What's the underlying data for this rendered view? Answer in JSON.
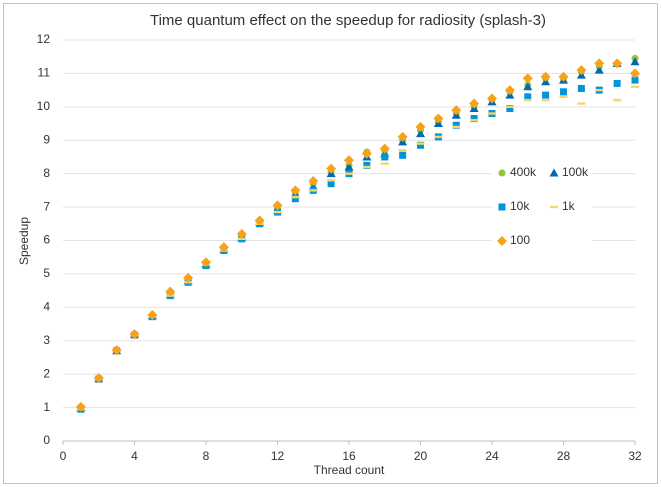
{
  "chart_data": {
    "type": "scatter",
    "title": "Time quantum effect on the speedup for radiosity (splash-3)",
    "x_label": "Thread count",
    "y_label": "Speedup",
    "x": [
      1,
      2,
      3,
      4,
      5,
      6,
      7,
      8,
      9,
      10,
      11,
      12,
      13,
      14,
      15,
      16,
      17,
      18,
      19,
      20,
      21,
      22,
      23,
      24,
      25,
      26,
      27,
      28,
      29,
      30,
      31,
      32
    ],
    "series": [
      {
        "name": "400k",
        "color": "#8dc63f",
        "marker": "circle",
        "values": [
          1,
          1.88,
          2.7,
          3.2,
          3.75,
          4.42,
          4.82,
          5.3,
          5.75,
          6.15,
          6.55,
          6.95,
          7.45,
          7.7,
          8.05,
          8.25,
          8.65,
          8.7,
          9.0,
          9.3,
          9.55,
          9.8,
          10.0,
          10.2,
          10.45,
          10.65,
          10.85,
          10.85,
          11.05,
          11.2,
          11.3,
          11.45
        ]
      },
      {
        "name": "100k",
        "color": "#0068b5",
        "marker": "triangle",
        "values": [
          1,
          1.88,
          2.7,
          3.2,
          3.75,
          4.4,
          4.8,
          5.3,
          5.75,
          6.1,
          6.55,
          6.9,
          7.4,
          7.6,
          8.0,
          8.2,
          8.5,
          8.6,
          8.95,
          9.2,
          9.5,
          9.75,
          9.95,
          10.15,
          10.35,
          10.6,
          10.75,
          10.8,
          10.95,
          11.1,
          11.3,
          11.35
        ]
      },
      {
        "name": "10k",
        "color": "#0095d9",
        "marker": "square",
        "values": [
          0.95,
          1.85,
          2.7,
          3.17,
          3.72,
          4.35,
          4.75,
          5.25,
          5.7,
          6.05,
          6.5,
          6.85,
          7.25,
          7.5,
          7.7,
          8.0,
          8.25,
          8.5,
          8.55,
          8.85,
          9.1,
          9.45,
          9.65,
          9.8,
          9.95,
          10.3,
          10.35,
          10.45,
          10.55,
          10.5,
          10.7,
          10.8
        ]
      },
      {
        "name": "1k",
        "color": "#f7d56b",
        "marker": "dash",
        "values": [
          0.95,
          1.85,
          2.7,
          3.17,
          3.72,
          4.35,
          4.75,
          5.28,
          5.7,
          6.05,
          6.5,
          6.85,
          7.3,
          7.5,
          7.8,
          8.0,
          8.2,
          8.3,
          8.7,
          8.9,
          9.1,
          9.4,
          9.6,
          9.8,
          10.0,
          10.2,
          10.2,
          10.3,
          10.1,
          10.5,
          10.2,
          10.6
        ]
      },
      {
        "name": "100",
        "color": "#f8a11b",
        "marker": "diamond",
        "values": [
          1.02,
          1.88,
          2.72,
          3.2,
          3.77,
          4.47,
          4.88,
          5.35,
          5.8,
          6.2,
          6.6,
          7.05,
          7.5,
          7.78,
          8.15,
          8.4,
          8.6,
          8.75,
          9.1,
          9.4,
          9.65,
          9.9,
          10.1,
          10.25,
          10.5,
          10.85,
          10.9,
          10.9,
          11.1,
          11.3,
          11.3,
          11.0
        ]
      }
    ],
    "xlim": [
      0,
      32
    ],
    "xticks": [
      0,
      4,
      8,
      12,
      16,
      20,
      24,
      28,
      32
    ],
    "ylim": [
      0,
      12
    ],
    "yticks": [
      0,
      1,
      2,
      3,
      4,
      5,
      6,
      7,
      8,
      9,
      10,
      11,
      12
    ],
    "grid": true,
    "legend": "right"
  }
}
